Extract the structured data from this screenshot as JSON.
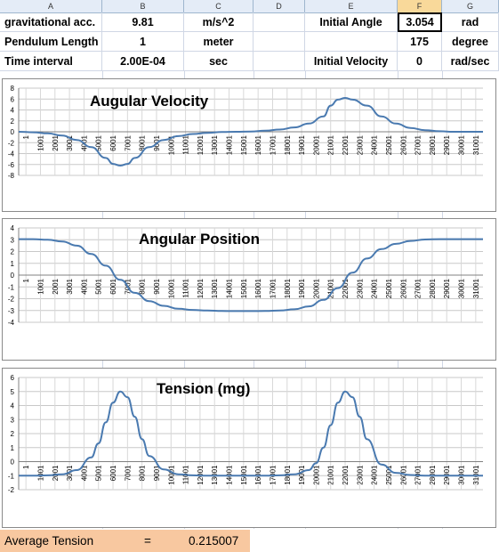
{
  "columns": [
    "A",
    "B",
    "C",
    "D",
    "E",
    "F",
    "G"
  ],
  "rows": [
    {
      "a": "gravitational acc.",
      "b": "9.81",
      "c": "m/s^2",
      "e": "Initial Angle",
      "f": "3.054",
      "g": "rad"
    },
    {
      "a": "Pendulum Length",
      "b": "1",
      "c": "meter",
      "e": "",
      "f": "175",
      "g": "degree"
    },
    {
      "a": "Time interval",
      "b": "2.00E-04",
      "c": "sec",
      "e": "Initial Velocity",
      "f": "0",
      "g": "rad/sec"
    }
  ],
  "summary": {
    "label": "Average Tension",
    "eq": "=",
    "value": "0.215007"
  },
  "x_tick_labels": [
    "1",
    "1001",
    "2001",
    "3001",
    "4001",
    "5001",
    "6001",
    "7001",
    "8001",
    "9001",
    "10001",
    "11001",
    "12001",
    "13001",
    "14001",
    "15001",
    "16001",
    "17001",
    "18001",
    "19001",
    "20001",
    "21001",
    "22001",
    "23001",
    "24001",
    "25001",
    "26001",
    "27001",
    "28001",
    "29001",
    "30001",
    "31001"
  ],
  "chart_data": [
    {
      "type": "line",
      "title": "Augular Velocity",
      "ylim": [
        -8,
        8
      ],
      "yticks": [
        -8,
        -6,
        -4,
        -2,
        0,
        2,
        4,
        6,
        8
      ],
      "ytick_labels": [
        "-8",
        "-6",
        "-4",
        "-2",
        "0",
        "2",
        "4",
        "6",
        "8"
      ],
      "x": [
        1,
        1001,
        2001,
        3001,
        4001,
        5001,
        6001,
        6501,
        7001,
        7501,
        8001,
        9001,
        10001,
        11001,
        12001,
        13001,
        14001,
        15001,
        16001,
        17001,
        18001,
        19001,
        20001,
        21001,
        21501,
        22001,
        22501,
        23001,
        24001,
        25001,
        26001,
        27001,
        28001,
        29001,
        30001,
        31001,
        32000
      ],
      "y": [
        0,
        -0.1,
        -0.3,
        -0.7,
        -1.5,
        -2.8,
        -4.8,
        -5.9,
        -6.2,
        -5.9,
        -4.8,
        -2.8,
        -1.5,
        -0.8,
        -0.4,
        -0.2,
        -0.05,
        0,
        0.05,
        0.2,
        0.4,
        0.8,
        1.5,
        2.8,
        4.8,
        5.9,
        6.2,
        5.9,
        4.8,
        2.8,
        1.5,
        0.7,
        0.3,
        0.1,
        0,
        0,
        0
      ],
      "grid": true,
      "color": "#4a7ab0"
    },
    {
      "type": "line",
      "title": "Angular Position",
      "ylim": [
        -4,
        4
      ],
      "yticks": [
        -4,
        -3,
        -2,
        -1,
        0,
        1,
        2,
        3,
        4
      ],
      "ytick_labels": [
        "-4",
        "-3",
        "-2",
        "-1",
        "0",
        "1",
        "2",
        "3",
        "4"
      ],
      "x": [
        1,
        1001,
        2001,
        3001,
        4001,
        5001,
        6001,
        7001,
        8001,
        9001,
        10001,
        11001,
        12001,
        13001,
        14001,
        15001,
        16001,
        17001,
        18001,
        19001,
        20001,
        21001,
        22001,
        23001,
        24001,
        25001,
        26001,
        27001,
        28001,
        29001,
        30001,
        31001,
        32000
      ],
      "y": [
        3.05,
        3.05,
        3.0,
        2.85,
        2.5,
        1.8,
        0.8,
        -0.4,
        -1.5,
        -2.2,
        -2.6,
        -2.85,
        -2.95,
        -3.0,
        -3.04,
        -3.05,
        -3.05,
        -3.04,
        -3.0,
        -2.9,
        -2.65,
        -2.1,
        -1.1,
        0.2,
        1.4,
        2.2,
        2.65,
        2.9,
        3.02,
        3.05,
        3.05,
        3.05,
        3.05
      ],
      "grid": true,
      "color": "#4a7ab0"
    },
    {
      "type": "line",
      "title": "Tension (mg)",
      "ylim": [
        -2,
        6
      ],
      "yticks": [
        -2,
        -1,
        0,
        1,
        2,
        3,
        4,
        5,
        6
      ],
      "ytick_labels": [
        "-2",
        "-1",
        "0",
        "1",
        "2",
        "3",
        "4",
        "5",
        "6"
      ],
      "x": [
        1,
        1001,
        2001,
        3001,
        4001,
        5001,
        5501,
        6001,
        6501,
        7001,
        7501,
        8001,
        8501,
        9001,
        10001,
        11001,
        12001,
        13001,
        14001,
        15001,
        16001,
        17001,
        18001,
        19001,
        20001,
        20501,
        21001,
        21501,
        22001,
        22501,
        23001,
        23501,
        24001,
        25001,
        26001,
        27001,
        28001,
        29001,
        30001,
        31001,
        32000
      ],
      "y": [
        -1,
        -1,
        -0.98,
        -0.9,
        -0.6,
        0.3,
        1.3,
        2.8,
        4.2,
        5.0,
        4.6,
        3.2,
        1.6,
        0.4,
        -0.55,
        -0.9,
        -0.98,
        -1,
        -1,
        -1,
        -1,
        -1,
        -0.98,
        -0.9,
        -0.6,
        -0.1,
        1.0,
        2.6,
        4.2,
        5.0,
        4.6,
        3.2,
        1.6,
        -0.2,
        -0.8,
        -0.95,
        -1,
        -1,
        -1,
        -1,
        -1
      ],
      "grid": true,
      "color": "#4a7ab0"
    }
  ]
}
